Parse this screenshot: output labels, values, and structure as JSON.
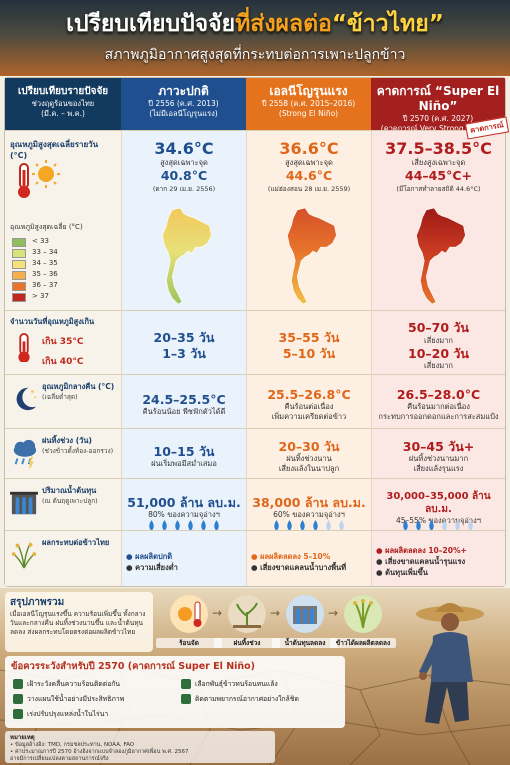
{
  "header": {
    "title_part1": "เปรียบเทียบปัจจัย",
    "title_part2": "ที่ส่งผลต่อ",
    "title_part3": "“ข้าวไทย”",
    "subtitle": "สภาพภูมิอากาศสูงสุดที่กระทบต่อการเพาะปลูกข้าว"
  },
  "table": {
    "columns": [
      {
        "title": "เปรียบเทียบรายปัจจัย",
        "lines": [
          "ช่วงฤดูร้อนของไทย",
          "(มี.ค. – พ.ค.)"
        ]
      },
      {
        "title": "ภาวะปกติ",
        "lines": [
          "ปี 2556 (ค.ศ. 2013)",
          "(ไม่มีเอลนีโญรุนแรง)"
        ]
      },
      {
        "title": "เอลนีโญรุนแรง",
        "lines": [
          "ปี 2558 (ค.ศ. 2015–2016)",
          "(Strong El Niño)"
        ]
      },
      {
        "title": "คาดการณ์ “Super El Niño”",
        "lines": [
          "ปี 2570 (ค.ศ. 2027)",
          "(คาดการณ์ Very Strong El Niño)"
        ]
      }
    ],
    "forecast_stamp": "คาดการณ์",
    "temperature_legend": {
      "title": "อุณหภูมิสูงสุดเฉลี่ย (°C)",
      "items": [
        "< 33",
        "33 – 34",
        "34 – 35",
        "35 – 36",
        "36 – 37",
        "> 37"
      ]
    },
    "rows": [
      {
        "label": [
          "อุณหภูมิสูงสุดเฉลี่ยรายวัน (°C)"
        ],
        "cells": [
          [
            "34.6°C",
            "สูงสุดเฉพาะจุด",
            "40.8°C",
            "(ตาก 29 เม.ย. 2556)"
          ],
          [
            "36.6°C",
            "สูงสุดเฉพาะจุด",
            "44.6°C",
            "(แม่ฮ่องสอน 28 เม.ย. 2559)"
          ],
          [
            "37.5–38.5°C",
            "เสี่ยงสูงเฉพาะจุด",
            "44–45°C+",
            "(มีโอกาสทำลายสถิติ 44.6°C)"
          ]
        ]
      },
      {
        "label": [
          "จำนวนวันที่อุณหภูมิสูงเกิน",
          "เกิน 35°C",
          "เกิน 40°C"
        ],
        "cells": [
          [
            "20–35 วัน",
            "1–3 วัน"
          ],
          [
            "35–55 วัน",
            "5–10 วัน"
          ],
          [
            "50–70 วัน",
            "เสี่ยงมาก",
            "10–20 วัน",
            "เสี่ยงมาก"
          ]
        ]
      },
      {
        "label": [
          "อุณหภูมิกลางคืน (°C)",
          "(เฉลี่ยต่ำสุด)"
        ],
        "cells": [
          [
            "24.5–25.5°C",
            "คืนร้อนน้อย พืชฟักตัวได้ดี"
          ],
          [
            "25.5–26.8°C",
            "คืนร้อนต่อเนื่อง",
            "เพิ่มความเครียดต่อข้าว"
          ],
          [
            "26.5–28.0°C",
            "คืนร้อนมากต่อเนื่อง",
            "กระทบการออกดอกและการสะสมแป้ง"
          ]
        ]
      },
      {
        "label": [
          "ฝนทิ้งช่วง (วัน)",
          "(ช่วงข้าวตั้งท้อง-ออกรวง)"
        ],
        "cells": [
          [
            "10–15 วัน",
            "ฝนเริ่มพอมีสม่ำเสมอ"
          ],
          [
            "20–30 วัน",
            "ฝนทิ้งช่วงนาน",
            "เสี่ยงแล้งในนาปลูก"
          ],
          [
            "30–45 วัน+",
            "ฝนทิ้งช่วงนานมาก",
            "เสี่ยงแล้งรุนแรง"
          ]
        ]
      },
      {
        "label": [
          "ปริมาณน้ำต้นทุน",
          "(ณ ต้นฤดูเพาะปลูก)"
        ],
        "cells": [
          [
            "51,000 ล้าน ลบ.ม.",
            "80% ของความจุอ่างฯ"
          ],
          [
            "38,000 ล้าน ลบ.ม.",
            "60% ของความจุอ่างฯ"
          ],
          [
            "30,000–35,000 ล้าน ลบ.ม.",
            "45–55% ของความจุอ่างฯ"
          ]
        ]
      },
      {
        "label": [
          "ผลกระทบต่อข้าวไทย"
        ],
        "cells": [
          [
            "ผลผลิตปกติ",
            "ความเสี่ยงต่ำ"
          ],
          [
            "ผลผลิตลดลง 5–10%",
            "เสี่ยงขาดแคลนน้ำบางพื้นที่"
          ],
          [
            "ผลผลิตลดลง 10–20%+",
            "เสี่ยงขาดแคลนน้ำรุนแรง",
            "ต้นทุนเพิ่มขึ้น"
          ]
        ]
      }
    ]
  },
  "summary": {
    "title": "สรุปภาพรวม",
    "text": "เมื่อเอลนีโญรุนแรงขึ้น ความร้อนเพิ่มขึ้น ทั้งกลางวันและกลางคืน ฝนทิ้งช่วงนานขึ้น และน้ำต้นทุนลดลง ส่งผลกระทบโดยตรงต่อผลผลิตข้าวไทย",
    "icons": [
      "ร้อนจัด",
      "ฝนทิ้งช่วง",
      "น้ำต้นทุนลดลง",
      "ข้าวได้ผลผลิตลดลง"
    ]
  },
  "recommendations": {
    "title": "ข้อควรระวังสำหรับปี 2570 (คาดการณ์ Super El Niño)",
    "items": [
      "เฝ้าระวังคลื่นความร้อนติดต่อกัน",
      "วางแผนใช้น้ำอย่างมีประสิทธิภาพ",
      "เร่งปรับปรุงแหล่งน้ำในไร่นา",
      "เลือกพันธุ์ข้าวทนร้อนทนแล้ง",
      "ติดตามพยากรณ์อากาศอย่างใกล้ชิด"
    ]
  },
  "footer": {
    "title": "หมายเหตุ",
    "lines": [
      "• ข้อมูลอ้างอิง: TMD, กรมชลประทาน, NOAA, FAO",
      "• ค่าประมาณการปี 2570 อ้างอิงจากแบบจำลองภูมิอากาศเพื่อน พ.ศ. 2567",
      "อาจมีการเปลี่ยนแปลงตามสถานการณ์จริง"
    ]
  }
}
